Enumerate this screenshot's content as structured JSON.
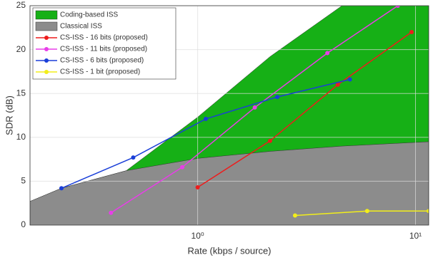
{
  "chart_data": {
    "type": "line",
    "xlabel": "Rate (kbps / source)",
    "ylabel": "SDR (dB)",
    "xscale": "log",
    "xlim": [
      0.17,
      11.5
    ],
    "ylim": [
      0,
      25
    ],
    "xticks": [
      {
        "value": 1,
        "label": "10⁰"
      },
      {
        "value": 10,
        "label": "10¹"
      }
    ],
    "yticks": [
      0,
      5,
      10,
      15,
      20,
      25
    ],
    "grid": true,
    "legend": "upper left",
    "series": [
      {
        "name": "Coding-based ISS",
        "kind": "area",
        "color": "#16b016",
        "x": [
          0.17,
          0.237,
          0.47,
          1.0,
          2.15,
          4.6,
          11.5
        ],
        "values": [
          2.7,
          4.2,
          6.2,
          12.3,
          19.2,
          25,
          25
        ]
      },
      {
        "name": "Classical ISS",
        "kind": "area",
        "color": "#8c8c8c",
        "x": [
          0.17,
          0.237,
          0.47,
          1.0,
          2.15,
          4.6,
          11.5
        ],
        "values": [
          2.7,
          4.2,
          6.2,
          7.6,
          8.4,
          9.0,
          9.5
        ]
      },
      {
        "name": "CS-ISS - 16 bits (proposed)",
        "kind": "line",
        "color": "#ee1c1c",
        "x": [
          1.0,
          2.15,
          4.4,
          9.6
        ],
        "values": [
          4.3,
          9.6,
          16,
          22
        ]
      },
      {
        "name": "CS-ISS - 11 bits (proposed)",
        "kind": "line",
        "color": "#e83ee8",
        "x": [
          0.4,
          0.85,
          1.83,
          3.94,
          8.3
        ],
        "values": [
          1.4,
          6.6,
          13.4,
          19.6,
          25
        ]
      },
      {
        "name": "CS-ISS - 6 bits (proposed)",
        "kind": "line",
        "color": "#1a3fd8",
        "x": [
          0.237,
          0.506,
          1.09,
          2.32,
          5.0
        ],
        "values": [
          4.2,
          7.7,
          12.1,
          14.6,
          16.6
        ]
      },
      {
        "name": "CS-ISS - 1 bit (proposed)",
        "kind": "line",
        "color": "#f2ee1a",
        "x": [
          2.8,
          6.0,
          11.5
        ],
        "values": [
          1.1,
          1.6,
          1.6
        ]
      }
    ]
  }
}
